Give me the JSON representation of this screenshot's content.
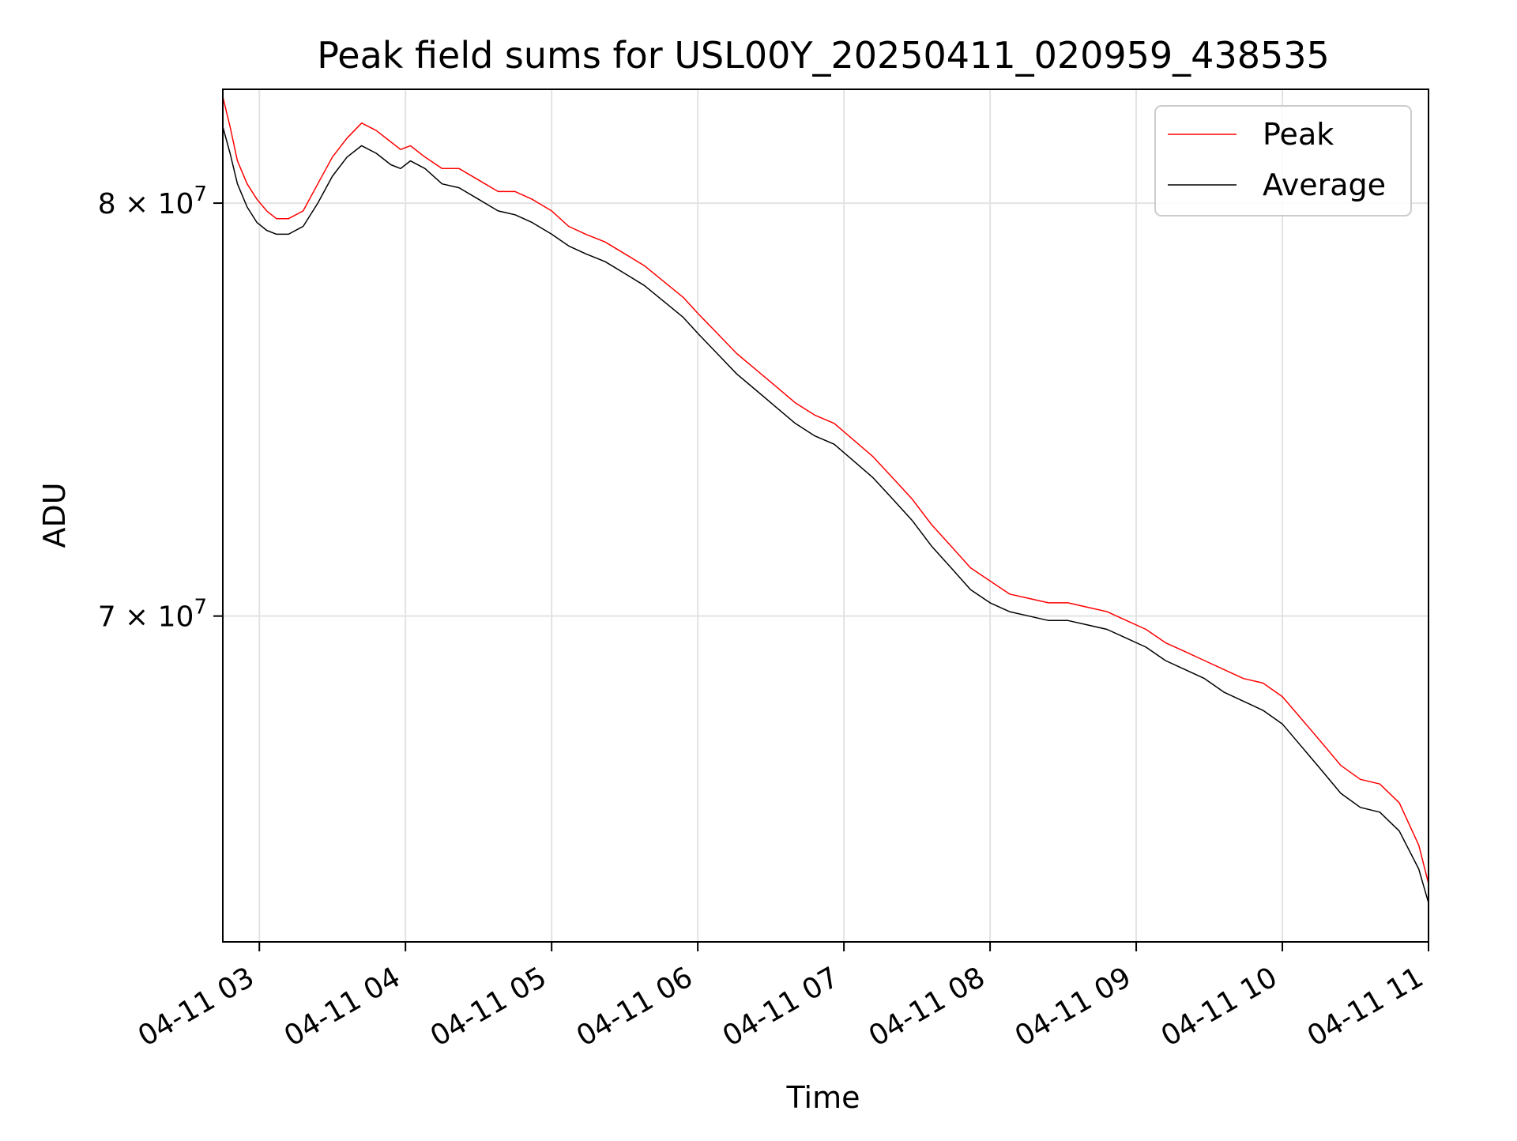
{
  "chart_data": {
    "type": "line",
    "title": "Peak field sums for USL00Y_20250411_020959_438535",
    "xlabel": "Time",
    "ylabel": "ADU",
    "yscale": "log",
    "x_tick_labels": [
      "04-11 03",
      "04-11 04",
      "04-11 05",
      "04-11 06",
      "04-11 07",
      "04-11 08",
      "04-11 09",
      "04-11 10",
      "04-11 11"
    ],
    "y_tick_labels": [
      {
        "value": 80000000,
        "mantissa": "8",
        "exponent": "7"
      },
      {
        "value": 70000000,
        "mantissa": "7",
        "exponent": "7"
      }
    ],
    "xlim": [
      "2025-04-11 02:45",
      "2025-04-11 11:00"
    ],
    "ylim": [
      63000000,
      83000000
    ],
    "grid": true,
    "legend_position": "upper right",
    "series": [
      {
        "name": "Peak",
        "color": "#ff0000",
        "x": [
          "02:45",
          "02:48",
          "02:51",
          "02:55",
          "02:59",
          "03:03",
          "03:07",
          "03:12",
          "03:18",
          "03:24",
          "03:30",
          "03:36",
          "03:42",
          "03:48",
          "03:54",
          "03:58",
          "04:02",
          "04:08",
          "04:15",
          "04:22",
          "04:30",
          "04:38",
          "04:45",
          "04:52",
          "05:00",
          "05:07",
          "05:14",
          "05:22",
          "05:30",
          "05:38",
          "05:46",
          "05:54",
          "06:00",
          "06:08",
          "06:16",
          "06:24",
          "06:32",
          "06:40",
          "06:48",
          "06:56",
          "07:04",
          "07:12",
          "07:20",
          "07:28",
          "07:36",
          "07:44",
          "07:52",
          "08:00",
          "08:08",
          "08:16",
          "08:24",
          "08:32",
          "08:40",
          "08:48",
          "08:56",
          "09:04",
          "09:12",
          "09:20",
          "09:28",
          "09:36",
          "09:44",
          "09:52",
          "10:00",
          "10:08",
          "10:16",
          "10:24",
          "10:32",
          "10:40",
          "10:48",
          "10:56",
          "11:00"
        ],
        "y": [
          82800000,
          82000000,
          81100000,
          80500000,
          80100000,
          79800000,
          79600000,
          79600000,
          79800000,
          80500000,
          81200000,
          81700000,
          82100000,
          81900000,
          81600000,
          81400000,
          81500000,
          81200000,
          80900000,
          80900000,
          80600000,
          80300000,
          80300000,
          80100000,
          79800000,
          79400000,
          79200000,
          79000000,
          78700000,
          78400000,
          78000000,
          77600000,
          77200000,
          76700000,
          76200000,
          75800000,
          75400000,
          75000000,
          74700000,
          74500000,
          74100000,
          73700000,
          73200000,
          72700000,
          72100000,
          71600000,
          71100000,
          70800000,
          70500000,
          70400000,
          70300000,
          70300000,
          70200000,
          70100000,
          69900000,
          69700000,
          69400000,
          69200000,
          69000000,
          68800000,
          68600000,
          68500000,
          68200000,
          67700000,
          67200000,
          66700000,
          66400000,
          66300000,
          65900000,
          65000000,
          64200000
        ]
      },
      {
        "name": "Average",
        "color": "#000000",
        "x": [
          "02:45",
          "02:48",
          "02:51",
          "02:55",
          "02:59",
          "03:03",
          "03:07",
          "03:12",
          "03:18",
          "03:24",
          "03:30",
          "03:36",
          "03:42",
          "03:48",
          "03:54",
          "03:58",
          "04:02",
          "04:08",
          "04:15",
          "04:22",
          "04:30",
          "04:38",
          "04:45",
          "04:52",
          "05:00",
          "05:07",
          "05:14",
          "05:22",
          "05:30",
          "05:38",
          "05:46",
          "05:54",
          "06:00",
          "06:08",
          "06:16",
          "06:24",
          "06:32",
          "06:40",
          "06:48",
          "06:56",
          "07:04",
          "07:12",
          "07:20",
          "07:28",
          "07:36",
          "07:44",
          "07:52",
          "08:00",
          "08:08",
          "08:16",
          "08:24",
          "08:32",
          "08:40",
          "08:48",
          "08:56",
          "09:04",
          "09:12",
          "09:20",
          "09:28",
          "09:36",
          "09:44",
          "09:52",
          "10:00",
          "10:08",
          "10:16",
          "10:24",
          "10:32",
          "10:40",
          "10:48",
          "10:56",
          "11:00"
        ],
        "y": [
          82000000,
          81300000,
          80500000,
          79900000,
          79500000,
          79300000,
          79200000,
          79200000,
          79400000,
          80000000,
          80700000,
          81200000,
          81500000,
          81300000,
          81000000,
          80900000,
          81100000,
          80900000,
          80500000,
          80400000,
          80100000,
          79800000,
          79700000,
          79500000,
          79200000,
          78900000,
          78700000,
          78500000,
          78200000,
          77900000,
          77500000,
          77100000,
          76700000,
          76200000,
          75700000,
          75300000,
          74900000,
          74500000,
          74200000,
          74000000,
          73600000,
          73200000,
          72700000,
          72200000,
          71600000,
          71100000,
          70600000,
          70300000,
          70100000,
          70000000,
          69900000,
          69900000,
          69800000,
          69700000,
          69500000,
          69300000,
          69000000,
          68800000,
          68600000,
          68300000,
          68100000,
          67900000,
          67600000,
          67100000,
          66600000,
          66100000,
          65800000,
          65700000,
          65300000,
          64500000,
          63800000
        ]
      }
    ]
  }
}
